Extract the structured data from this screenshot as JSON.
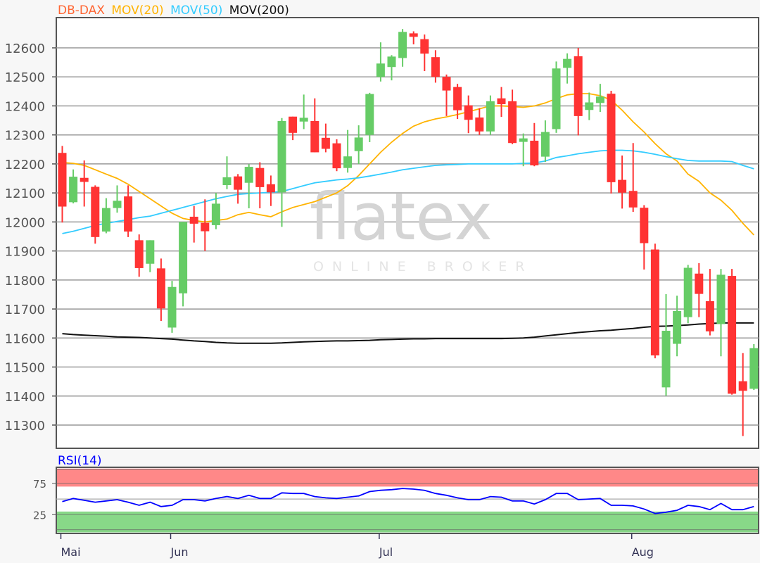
{
  "chart_data": {
    "type": "candlestick",
    "legend": [
      {
        "label": "DB-DAX",
        "color": "#ff6633"
      },
      {
        "label": "MOV(20)",
        "color": "#ffb300"
      },
      {
        "label": "MOV(50)",
        "color": "#33ccff"
      },
      {
        "label": "MOV(200)",
        "color": "#111111"
      }
    ],
    "legend_placement": "top-left",
    "watermark": {
      "brand": "flatex",
      "tagline": "ONLINE BROKER"
    },
    "colors": {
      "up": "#66cc66",
      "down": "#ff3333"
    },
    "ylim": [
      11210,
      12700
    ],
    "yticks": [
      12600,
      12500,
      12400,
      12300,
      12200,
      12100,
      12000,
      11900,
      11800,
      11700,
      11600,
      11500,
      11400,
      11300
    ],
    "grid": true,
    "x_month_ticks": [
      {
        "label": "Mai",
        "candle": 1
      },
      {
        "label": "Jun",
        "candle": 11
      },
      {
        "label": "Jul",
        "candle": 30
      },
      {
        "label": "Aug",
        "candle": 53
      }
    ],
    "ohlc": [
      [
        12238,
        12262,
        11998,
        12053
      ],
      [
        12068,
        12181,
        12064,
        12156
      ],
      [
        12152,
        12212,
        12053,
        12138
      ],
      [
        12121,
        12126,
        11925,
        11948
      ],
      [
        11967,
        12082,
        11961,
        12048
      ],
      [
        12048,
        12126,
        12032,
        12073
      ],
      [
        12088,
        12126,
        11948,
        11967
      ],
      [
        11937,
        11957,
        11811,
        11841
      ],
      [
        11856,
        11937,
        11827,
        11937
      ],
      [
        11840,
        11874,
        11659,
        11702
      ],
      [
        11636,
        11797,
        11618,
        11776
      ],
      [
        11754,
        12000,
        11709,
        12000
      ],
      [
        12018,
        12055,
        11929,
        11994
      ],
      [
        11997,
        12078,
        11900,
        11968
      ],
      [
        11989,
        12100,
        11975,
        12063
      ],
      [
        12127,
        12226,
        12113,
        12154
      ],
      [
        12157,
        12165,
        12063,
        12111
      ],
      [
        12135,
        12199,
        12047,
        12190
      ],
      [
        12186,
        12206,
        12047,
        12120
      ],
      [
        12130,
        12160,
        12055,
        12102
      ],
      [
        12102,
        12358,
        11983,
        12348
      ],
      [
        12363,
        12363,
        12282,
        12307
      ],
      [
        12346,
        12439,
        12320,
        12359
      ],
      [
        12348,
        12426,
        12240,
        12240
      ],
      [
        12290,
        12339,
        12240,
        12252
      ],
      [
        12271,
        12285,
        12175,
        12185
      ],
      [
        12186,
        12317,
        12170,
        12226
      ],
      [
        12244,
        12333,
        12200,
        12291
      ],
      [
        12300,
        12445,
        12275,
        12441
      ],
      [
        12500,
        12619,
        12484,
        12546
      ],
      [
        12534,
        12575,
        12488,
        12570
      ],
      [
        12565,
        12665,
        12535,
        12655
      ],
      [
        12650,
        12657,
        12612,
        12638
      ],
      [
        12630,
        12646,
        12520,
        12580
      ],
      [
        12568,
        12592,
        12480,
        12500
      ],
      [
        12500,
        12508,
        12365,
        12453
      ],
      [
        12465,
        12476,
        12355,
        12385
      ],
      [
        12402,
        12436,
        12306,
        12352
      ],
      [
        12360,
        12392,
        12300,
        12312
      ],
      [
        12312,
        12436,
        12300,
        12416
      ],
      [
        12426,
        12465,
        12362,
        12406
      ],
      [
        12416,
        12456,
        12268,
        12272
      ],
      [
        12276,
        12305,
        12192,
        12288
      ],
      [
        12280,
        12341,
        12192,
        12195
      ],
      [
        12225,
        12350,
        12207,
        12310
      ],
      [
        12320,
        12553,
        12307,
        12529
      ],
      [
        12531,
        12581,
        12477,
        12562
      ],
      [
        12571,
        12600,
        12298,
        12365
      ],
      [
        12386,
        12446,
        12351,
        12412
      ],
      [
        12410,
        12476,
        12379,
        12432
      ],
      [
        12442,
        12452,
        12098,
        12137
      ],
      [
        12145,
        12229,
        12046,
        12101
      ],
      [
        12107,
        12272,
        12035,
        12050
      ],
      [
        12049,
        12058,
        11836,
        11927
      ],
      [
        11905,
        11925,
        11530,
        11540
      ],
      [
        11430,
        11751,
        11401,
        11625
      ],
      [
        11580,
        11746,
        11537,
        11693
      ],
      [
        11672,
        11852,
        11651,
        11842
      ],
      [
        11822,
        11858,
        11672,
        11752
      ],
      [
        11727,
        11838,
        11609,
        11623
      ],
      [
        11648,
        11838,
        11537,
        11818
      ],
      [
        11814,
        11838,
        11405,
        11408
      ],
      [
        11451,
        11548,
        11262,
        11418
      ],
      [
        11425,
        11579,
        11421,
        11565
      ]
    ],
    "ohlc_fields": [
      "open",
      "high",
      "low",
      "close"
    ],
    "series": [
      {
        "name": "MOV(20)",
        "color": "#ffb300",
        "values": [
          12205,
          12202,
          12195,
          12180,
          12165,
          12150,
          12130,
          12105,
          12080,
          12055,
          12030,
          12012,
          12005,
          12000,
          12005,
          12010,
          12025,
          12033,
          12025,
          12018,
          12035,
          12050,
          12060,
          12070,
          12085,
          12100,
          12125,
          12160,
          12200,
          12240,
          12275,
          12305,
          12330,
          12345,
          12355,
          12362,
          12370,
          12380,
          12390,
          12400,
          12400,
          12398,
          12395,
          12400,
          12410,
          12425,
          12438,
          12442,
          12442,
          12435,
          12420,
          12385,
          12345,
          12310,
          12270,
          12235,
          12210,
          12165,
          12140,
          12100,
          12075,
          12040,
          11995,
          11955
        ]
      },
      {
        "name": "MOV(50)",
        "color": "#33ccff",
        "values": [
          11960,
          11968,
          11978,
          11988,
          11995,
          12002,
          12008,
          12015,
          12020,
          12030,
          12040,
          12050,
          12060,
          12070,
          12080,
          12088,
          12095,
          12098,
          12100,
          12102,
          12105,
          12115,
          12125,
          12135,
          12140,
          12145,
          12148,
          12152,
          12158,
          12165,
          12172,
          12180,
          12185,
          12190,
          12195,
          12197,
          12198,
          12200,
          12200,
          12200,
          12200,
          12200,
          12202,
          12203,
          12210,
          12222,
          12228,
          12235,
          12240,
          12245,
          12247,
          12247,
          12245,
          12240,
          12233,
          12225,
          12218,
          12212,
          12210,
          12210,
          12210,
          12208,
          12195,
          12183
        ]
      },
      {
        "name": "MOV(200)",
        "color": "#111111",
        "values": [
          11615,
          11612,
          11610,
          11608,
          11606,
          11604,
          11603,
          11602,
          11600,
          11598,
          11596,
          11593,
          11590,
          11588,
          11585,
          11583,
          11582,
          11582,
          11582,
          11582,
          11583,
          11585,
          11587,
          11588,
          11589,
          11590,
          11590,
          11591,
          11592,
          11594,
          11595,
          11596,
          11597,
          11597,
          11598,
          11598,
          11598,
          11598,
          11598,
          11598,
          11598,
          11599,
          11600,
          11603,
          11607,
          11611,
          11615,
          11619,
          11622,
          11625,
          11627,
          11630,
          11633,
          11637,
          11640,
          11641,
          11643,
          11645,
          11648,
          11650,
          11652,
          11652,
          11652,
          11652
        ]
      }
    ],
    "rsi": {
      "label": "RSI(14)",
      "color": "#0000ff",
      "yticks": [
        75,
        25
      ],
      "overbought_band": [
        70,
        100
      ],
      "oversold_band": [
        0,
        30
      ],
      "band_colors": {
        "overbought": "#ff8888",
        "oversold": "#88d888"
      },
      "values": [
        46,
        51,
        48,
        45,
        47,
        49,
        45,
        40,
        45,
        38,
        40,
        49,
        49,
        47,
        51,
        54,
        51,
        56,
        51,
        51,
        60,
        59,
        59,
        54,
        52,
        51,
        53,
        55,
        62,
        64,
        65,
        67,
        66,
        64,
        59,
        56,
        52,
        49,
        49,
        54,
        53,
        47,
        47,
        42,
        49,
        59,
        59,
        49,
        50,
        51,
        40,
        40,
        39,
        34,
        27,
        29,
        32,
        40,
        38,
        33,
        43,
        33,
        33,
        38
      ]
    }
  }
}
